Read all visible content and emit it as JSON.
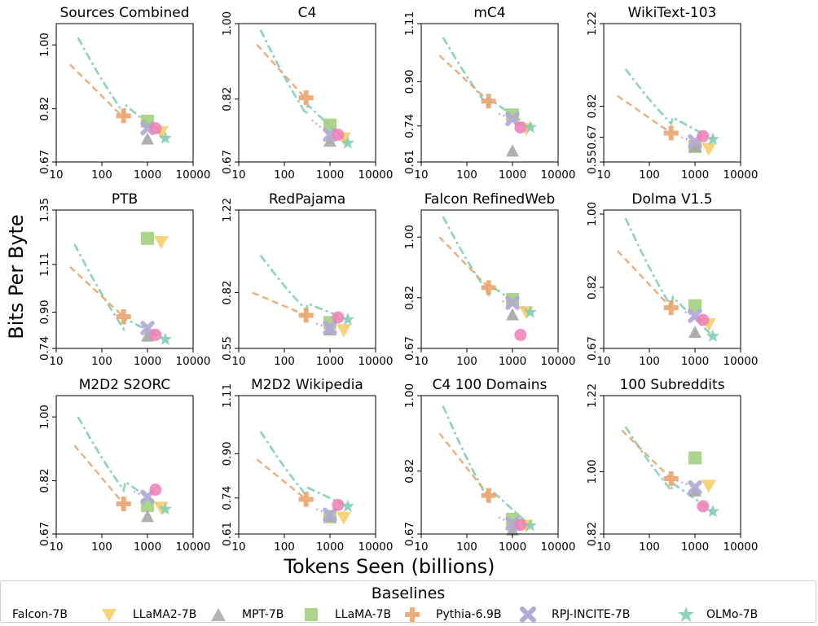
{
  "figure": {
    "xlabel": "Tokens Seen (billions)",
    "ylabel": "Bits Per Byte"
  },
  "legend": {
    "title": "Baselines",
    "entries": [
      {
        "name": "Falcon-7B",
        "marker": "circle-icon",
        "color": "#f07cb8"
      },
      {
        "name": "LLaMA2-7B",
        "marker": "triangle-down-icon",
        "color": "#f5c85a"
      },
      {
        "name": "MPT-7B",
        "marker": "triangle-up-icon",
        "color": "#a6a6a6"
      },
      {
        "name": "LLaMA-7B",
        "marker": "square-icon",
        "color": "#9ccc78"
      },
      {
        "name": "Pythia-6.9B",
        "marker": "plus-icon",
        "color": "#eaa46e"
      },
      {
        "name": "RPJ-INCITE-7B",
        "marker": "x-icon",
        "color": "#b3a9d6"
      },
      {
        "name": "OLMo-7B",
        "marker": "star-icon",
        "color": "#7fcdb5"
      }
    ]
  },
  "chart_data": [
    {
      "type": "scatter",
      "title": "Sources Combined",
      "xscale": "log",
      "xlim": [
        10,
        10000
      ],
      "ylim": [
        0.67,
        1.06
      ],
      "yticks": [
        0.67,
        0.82,
        1.0
      ],
      "xticks": [
        "10",
        "100",
        "1000",
        "10000"
      ],
      "points": {
        "Falcon-7B": [
          1500,
          0.765
        ],
        "LLaMA2-7B": [
          2000,
          0.755
        ],
        "MPT-7B": [
          1000,
          0.735
        ],
        "LLaMA-7B": [
          1000,
          0.785
        ],
        "Pythia-6.9B": [
          300,
          0.8
        ],
        "RPJ-INCITE-7B": [
          1000,
          0.765
        ],
        "OLMo-7B": [
          2460,
          0.737
        ]
      },
      "curves": {
        "OLMo-7B": [
          [
            30,
            1.02
          ],
          [
            300,
            0.835
          ],
          [
            2460,
            0.737
          ]
        ],
        "Pythia-6.9B": [
          [
            20,
            0.945
          ],
          [
            300,
            0.795
          ]
        ],
        "RPJ-INCITE-7B": [
          [
            800,
            0.775
          ],
          [
            1000,
            0.765
          ]
        ]
      }
    },
    {
      "type": "scatter",
      "title": "C4",
      "xscale": "log",
      "xlim": [
        10,
        10000
      ],
      "ylim": [
        0.67,
        1.0
      ],
      "yticks": [
        0.67,
        0.82,
        1.0
      ],
      "xticks": [
        "10",
        "100",
        "1000",
        "10000"
      ],
      "points": {
        "Falcon-7B": [
          1500,
          0.735
        ],
        "LLaMA2-7B": [
          2000,
          0.727
        ],
        "MPT-7B": [
          1000,
          0.72
        ],
        "LLaMA-7B": [
          1000,
          0.758
        ],
        "Pythia-6.9B": [
          300,
          0.823
        ],
        "RPJ-INCITE-7B": [
          1000,
          0.735
        ],
        "OLMo-7B": [
          2460,
          0.715
        ]
      },
      "curves": {
        "OLMo-7B": [
          [
            30,
            0.985
          ],
          [
            300,
            0.81
          ],
          [
            2460,
            0.715
          ]
        ],
        "Pythia-6.9B": [
          [
            25,
            0.95
          ],
          [
            300,
            0.82
          ]
        ],
        "RPJ-INCITE-7B": [
          [
            400,
            0.77
          ],
          [
            1000,
            0.735
          ]
        ]
      }
    },
    {
      "type": "scatter",
      "title": "mC4",
      "xscale": "log",
      "xlim": [
        10,
        10000
      ],
      "ylim": [
        0.61,
        1.11
      ],
      "yticks": [
        0.61,
        0.74,
        0.9,
        1.11
      ],
      "xticks": [
        "10",
        "100",
        "1000",
        "10000"
      ],
      "points": {
        "Falcon-7B": [
          1500,
          0.735
        ],
        "LLaMA2-7B": [
          2000,
          0.73
        ],
        "MPT-7B": [
          1000,
          0.65
        ],
        "LLaMA-7B": [
          1000,
          0.78
        ],
        "Pythia-6.9B": [
          300,
          0.83
        ],
        "RPJ-INCITE-7B": [
          1000,
          0.765
        ],
        "OLMo-7B": [
          2460,
          0.735
        ]
      },
      "curves": {
        "OLMo-7B": [
          [
            30,
            1.06
          ],
          [
            300,
            0.84
          ],
          [
            2460,
            0.735
          ]
        ],
        "Pythia-6.9B": [
          [
            25,
            0.995
          ],
          [
            300,
            0.83
          ]
        ],
        "RPJ-INCITE-7B": [
          [
            500,
            0.785
          ],
          [
            1000,
            0.765
          ]
        ]
      }
    },
    {
      "type": "scatter",
      "title": "WikiText-103",
      "xscale": "log",
      "xlim": [
        10,
        10000
      ],
      "ylim": [
        0.55,
        1.22
      ],
      "yticks": [
        0.55,
        0.67,
        0.82,
        1.22
      ],
      "xticks": [
        "10",
        "100",
        "1000",
        "10000"
      ],
      "points": {
        "Falcon-7B": [
          1500,
          0.675
        ],
        "LLaMA2-7B": [
          2000,
          0.615
        ],
        "MPT-7B": [
          1000,
          0.625
        ],
        "LLaMA-7B": [
          1000,
          0.625
        ],
        "Pythia-6.9B": [
          300,
          0.69
        ],
        "RPJ-INCITE-7B": [
          1000,
          0.65
        ],
        "OLMo-7B": [
          2460,
          0.66
        ]
      },
      "curves": {
        "OLMo-7B": [
          [
            30,
            1.0
          ],
          [
            300,
            0.77
          ],
          [
            2460,
            0.66
          ]
        ],
        "Pythia-6.9B": [
          [
            20,
            0.87
          ],
          [
            300,
            0.69
          ]
        ],
        "RPJ-INCITE-7B": [
          [
            500,
            0.67
          ],
          [
            1000,
            0.65
          ]
        ]
      }
    },
    {
      "type": "scatter",
      "title": "PTB",
      "xscale": "log",
      "xlim": [
        10,
        10000
      ],
      "ylim": [
        0.74,
        1.35
      ],
      "yticks": [
        0.74,
        0.9,
        1.11,
        1.35
      ],
      "xticks": [
        "10",
        "100",
        "1000",
        "10000"
      ],
      "points": {
        "Falcon-7B": [
          1500,
          0.8
        ],
        "LLaMA2-7B": [
          2000,
          1.21
        ],
        "MPT-7B": [
          1000,
          0.795
        ],
        "LLaMA-7B": [
          1000,
          1.225
        ],
        "Pythia-6.9B": [
          300,
          0.88
        ],
        "RPJ-INCITE-7B": [
          1000,
          0.83
        ],
        "OLMo-7B": [
          2460,
          0.78
        ]
      },
      "curves": {
        "OLMo-7B": [
          [
            25,
            1.2
          ],
          [
            300,
            0.875
          ],
          [
            2460,
            0.78
          ]
        ],
        "Pythia-6.9B": [
          [
            20,
            1.1
          ],
          [
            300,
            0.88
          ]
        ],
        "RPJ-INCITE-7B": [
          [
            600,
            0.84
          ],
          [
            1000,
            0.83
          ]
        ]
      }
    },
    {
      "type": "scatter",
      "title": "RedPajama",
      "xscale": "log",
      "xlim": [
        10,
        10000
      ],
      "ylim": [
        0.55,
        1.22
      ],
      "yticks": [
        0.55,
        0.82,
        1.22
      ],
      "xticks": [
        "10",
        "100",
        "1000",
        "10000"
      ],
      "points": {
        "Falcon-7B": [
          1500,
          0.7
        ],
        "LLaMA2-7B": [
          2000,
          0.64
        ],
        "MPT-7B": [
          1000,
          0.64
        ],
        "LLaMA-7B": [
          1000,
          0.675
        ],
        "Pythia-6.9B": [
          300,
          0.71
        ],
        "RPJ-INCITE-7B": [
          1000,
          0.65
        ],
        "OLMo-7B": [
          2460,
          0.69
        ]
      },
      "curves": {
        "OLMo-7B": [
          [
            30,
            1.0
          ],
          [
            300,
            0.77
          ],
          [
            2460,
            0.69
          ]
        ],
        "Pythia-6.9B": [
          [
            20,
            0.82
          ],
          [
            300,
            0.71
          ]
        ],
        "RPJ-INCITE-7B": [
          [
            500,
            0.67
          ],
          [
            1000,
            0.65
          ]
        ]
      }
    },
    {
      "type": "scatter",
      "title": "Falcon RefinedWeb",
      "xscale": "log",
      "xlim": [
        10,
        10000
      ],
      "ylim": [
        0.67,
        1.08
      ],
      "yticks": [
        0.67,
        0.82,
        1.0
      ],
      "xticks": [
        "10",
        "100",
        "1000",
        "10000"
      ],
      "points": {
        "Falcon-7B": [
          1500,
          0.71
        ],
        "LLaMA2-7B": [
          2000,
          0.778
        ],
        "MPT-7B": [
          1000,
          0.77
        ],
        "LLaMA-7B": [
          1000,
          0.815
        ],
        "Pythia-6.9B": [
          300,
          0.85
        ],
        "RPJ-INCITE-7B": [
          1000,
          0.805
        ],
        "OLMo-7B": [
          2460,
          0.777
        ]
      },
      "curves": {
        "OLMo-7B": [
          [
            30,
            1.06
          ],
          [
            300,
            0.86
          ],
          [
            2460,
            0.777
          ]
        ],
        "Pythia-6.9B": [
          [
            25,
            1.0
          ],
          [
            300,
            0.85
          ]
        ],
        "RPJ-INCITE-7B": [
          [
            600,
            0.81
          ],
          [
            1000,
            0.805
          ]
        ]
      }
    },
    {
      "type": "scatter",
      "title": "Dolma V1.5",
      "xscale": "log",
      "xlim": [
        10,
        10000
      ],
      "ylim": [
        0.67,
        1.01
      ],
      "yticks": [
        0.67,
        0.82,
        1.0
      ],
      "xticks": [
        "10",
        "100",
        "1000",
        "10000"
      ],
      "points": {
        "Falcon-7B": [
          1500,
          0.74
        ],
        "LLaMA2-7B": [
          2000,
          0.73
        ],
        "MPT-7B": [
          1000,
          0.71
        ],
        "LLaMA-7B": [
          1000,
          0.775
        ],
        "Pythia-6.9B": [
          300,
          0.77
        ],
        "RPJ-INCITE-7B": [
          1000,
          0.75
        ],
        "OLMo-7B": [
          2460,
          0.7
        ]
      },
      "curves": {
        "OLMo-7B": [
          [
            30,
            0.99
          ],
          [
            300,
            0.8
          ],
          [
            2460,
            0.7
          ]
        ],
        "Pythia-6.9B": [
          [
            20,
            0.91
          ],
          [
            300,
            0.77
          ]
        ],
        "RPJ-INCITE-7B": [
          [
            600,
            0.76
          ],
          [
            1000,
            0.75
          ]
        ]
      }
    },
    {
      "type": "scatter",
      "title": "M2D2 S2ORC",
      "xscale": "log",
      "xlim": [
        10,
        10000
      ],
      "ylim": [
        0.67,
        1.06
      ],
      "yticks": [
        0.67,
        0.82,
        1.0
      ],
      "xticks": [
        "10",
        "100",
        "1000",
        "10000"
      ],
      "points": {
        "Falcon-7B": [
          1500,
          0.795
        ],
        "LLaMA2-7B": [
          2000,
          0.745
        ],
        "MPT-7B": [
          1000,
          0.72
        ],
        "LLaMA-7B": [
          1000,
          0.75
        ],
        "Pythia-6.9B": [
          300,
          0.755
        ],
        "RPJ-INCITE-7B": [
          1000,
          0.775
        ],
        "OLMo-7B": [
          2460,
          0.74
        ]
      },
      "curves": {
        "OLMo-7B": [
          [
            30,
            1.0
          ],
          [
            300,
            0.82
          ],
          [
            2460,
            0.74
          ]
        ],
        "Pythia-6.9B": [
          [
            25,
            0.92
          ],
          [
            300,
            0.755
          ]
        ],
        "RPJ-INCITE-7B": [
          [
            500,
            0.79
          ],
          [
            1000,
            0.775
          ]
        ]
      }
    },
    {
      "type": "scatter",
      "title": "M2D2 Wikipedia",
      "xscale": "log",
      "xlim": [
        10,
        10000
      ],
      "ylim": [
        0.61,
        1.11
      ],
      "yticks": [
        0.61,
        0.74,
        0.9,
        1.11
      ],
      "xticks": [
        "10",
        "100",
        "1000",
        "10000"
      ],
      "points": {
        "Falcon-7B": [
          1500,
          0.715
        ],
        "LLaMA2-7B": [
          2000,
          0.67
        ],
        "MPT-7B": [
          1000,
          0.675
        ],
        "LLaMA-7B": [
          1000,
          0.672
        ],
        "Pythia-6.9B": [
          300,
          0.735
        ],
        "RPJ-INCITE-7B": [
          1000,
          0.68
        ],
        "OLMo-7B": [
          2460,
          0.71
        ]
      },
      "curves": {
        "OLMo-7B": [
          [
            30,
            0.98
          ],
          [
            300,
            0.78
          ],
          [
            2460,
            0.71
          ]
        ],
        "Pythia-6.9B": [
          [
            25,
            0.88
          ],
          [
            300,
            0.735
          ]
        ],
        "RPJ-INCITE-7B": [
          [
            500,
            0.7
          ],
          [
            1000,
            0.68
          ]
        ]
      }
    },
    {
      "type": "scatter",
      "title": "C4 100 Domains",
      "xscale": "log",
      "xlim": [
        10,
        10000
      ],
      "ylim": [
        0.67,
        1.0
      ],
      "yticks": [
        0.67,
        0.82,
        1.0
      ],
      "xticks": [
        "10",
        "100",
        "1000",
        "10000"
      ],
      "points": {
        "Falcon-7B": [
          1500,
          0.692
        ],
        "LLaMA2-7B": [
          2000,
          0.69
        ],
        "MPT-7B": [
          1000,
          0.68
        ],
        "LLaMA-7B": [
          1000,
          0.705
        ],
        "Pythia-6.9B": [
          300,
          0.762
        ],
        "RPJ-INCITE-7B": [
          1000,
          0.695
        ],
        "OLMo-7B": [
          2460,
          0.69
        ]
      },
      "curves": {
        "OLMo-7B": [
          [
            30,
            0.975
          ],
          [
            300,
            0.78
          ],
          [
            2460,
            0.69
          ]
        ],
        "Pythia-6.9B": [
          [
            25,
            0.91
          ],
          [
            300,
            0.762
          ]
        ],
        "RPJ-INCITE-7B": [
          [
            500,
            0.71
          ],
          [
            1000,
            0.695
          ]
        ]
      }
    },
    {
      "type": "scatter",
      "title": "100 Subreddits",
      "xscale": "log",
      "xlim": [
        10,
        10000
      ],
      "ylim": [
        0.82,
        1.22
      ],
      "yticks": [
        0.82,
        1.0,
        1.22
      ],
      "xticks": [
        "10",
        "100",
        "1000",
        "10000"
      ],
      "points": {
        "Falcon-7B": [
          1500,
          0.9
        ],
        "LLaMA2-7B": [
          2000,
          0.96
        ],
        "MPT-7B": [
          1000,
          0.945
        ],
        "LLaMA-7B": [
          1000,
          1.04
        ],
        "Pythia-6.9B": [
          300,
          0.98
        ],
        "RPJ-INCITE-7B": [
          1000,
          0.955
        ],
        "OLMo-7B": [
          2460,
          0.885
        ]
      },
      "curves": {
        "OLMo-7B": [
          [
            30,
            1.13
          ],
          [
            300,
            0.97
          ],
          [
            2460,
            0.885
          ]
        ],
        "Pythia-6.9B": [
          [
            25,
            1.12
          ],
          [
            300,
            0.98
          ]
        ],
        "RPJ-INCITE-7B": [
          [
            400,
            0.975
          ],
          [
            1000,
            0.955
          ]
        ]
      }
    }
  ]
}
